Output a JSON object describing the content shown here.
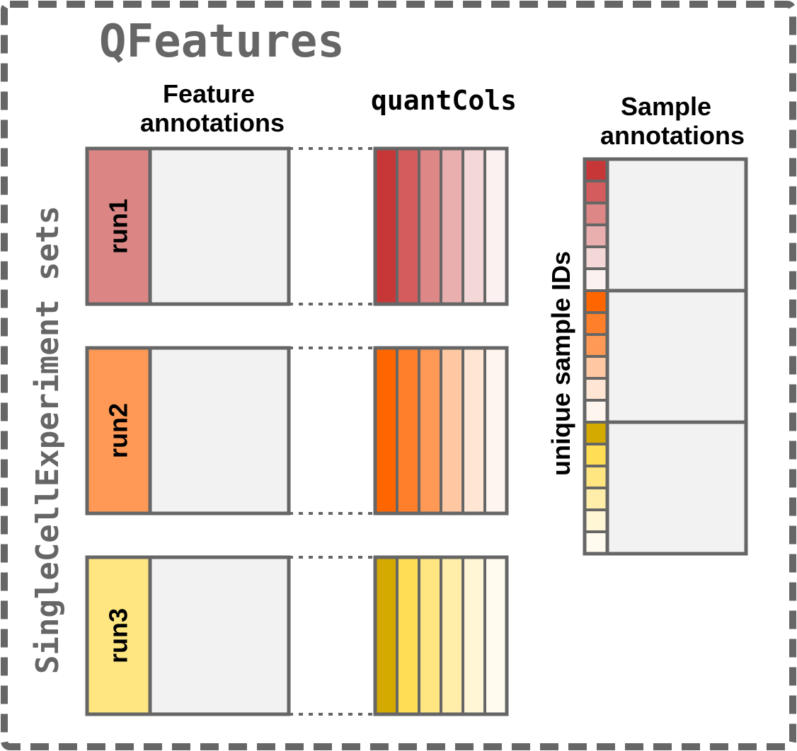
{
  "title": "QFeatures",
  "side_label": "SingleCellExperiment sets",
  "headers": {
    "feature_annotations": [
      "Feature",
      "annotations"
    ],
    "quant_cols": "quantCols",
    "sample_annotations": [
      "Sample",
      "annotations"
    ],
    "sample_ids": "unique sample IDs"
  },
  "colors": {
    "frame": "#666666",
    "text_gray": "#666666",
    "annotation_fill": "#f2f2f2"
  },
  "runs": [
    {
      "name": "run1",
      "color": "#dc8585",
      "quant_colors": [
        "#c83737",
        "#d45c5c",
        "#de8787",
        "#e9afaf",
        "#f4d7d7",
        "#fcf1f1"
      ]
    },
    {
      "name": "run2",
      "color": "#ff9955",
      "quant_colors": [
        "#ff6600",
        "#ff7f2a",
        "#ff9955",
        "#ffc8a3",
        "#ffe5d3",
        "#fff5ef"
      ]
    },
    {
      "name": "run3",
      "color": "#ffe680",
      "quant_colors": [
        "#d4aa00",
        "#ffdd55",
        "#ffe680",
        "#ffeeaa",
        "#fff6d5",
        "#fffbee"
      ]
    }
  ]
}
